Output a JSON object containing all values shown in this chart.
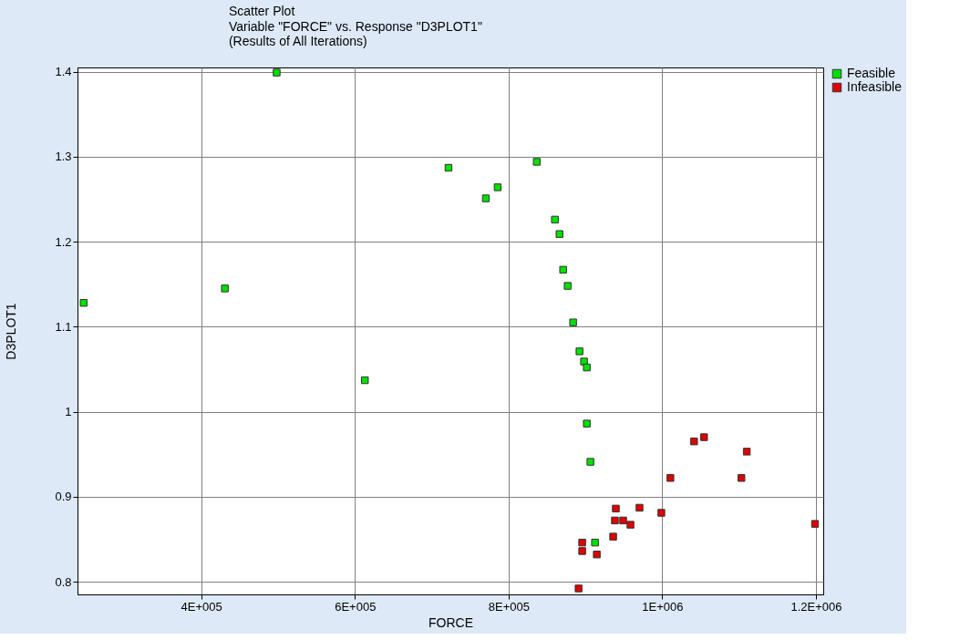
{
  "chart_data": {
    "type": "scatter",
    "title": "Scatter Plot",
    "subtitle": [
      "Variable \"FORCE\" vs. Response \"D3PLOT1\"",
      "(Results of All Iterations)"
    ],
    "xlabel": "FORCE",
    "ylabel": "D3PLOT1",
    "xlim": [
      239000,
      1209500
    ],
    "ylim": [
      0.785,
      1.405
    ],
    "xticks": [
      {
        "value": 400000,
        "label": "4E+005"
      },
      {
        "value": 600000,
        "label": "6E+005"
      },
      {
        "value": 800000,
        "label": "8E+005"
      },
      {
        "value": 1000000,
        "label": "1E+006"
      },
      {
        "value": 1200000,
        "label": "1.2E+006"
      }
    ],
    "yticks": [
      0.8,
      0.9,
      1,
      1.1,
      1.2,
      1.3,
      1.4
    ],
    "grid": true,
    "legend": "top right",
    "marker": "square",
    "series": [
      {
        "name": "Feasible",
        "color": "#00e000",
        "x": [
          247000,
          430800,
          498200,
          613000,
          721800,
          770400,
          785800,
          836700,
          860300,
          866300,
          871000,
          876900,
          884000,
          892300,
          898200,
          901800,
          901800,
          906500,
          912500
        ],
        "values": [
          1.128,
          1.145,
          1.399,
          1.037,
          1.287,
          1.251,
          1.264,
          1.294,
          1.226,
          1.209,
          1.167,
          1.148,
          1.105,
          1.071,
          1.059,
          1.052,
          0.986,
          0.941,
          0.846
        ]
      },
      {
        "name": "Infeasible",
        "color": "#e00000",
        "x": [
          895800,
          895800,
          891100,
          914800,
          936100,
          938400,
          939600,
          949100,
          958600,
          970400,
          998800,
          1010600,
          1041400,
          1054400,
          1103000,
          1110000,
          1198800
        ],
        "values": [
          0.846,
          0.836,
          0.792,
          0.832,
          0.853,
          0.872,
          0.886,
          0.872,
          0.867,
          0.887,
          0.881,
          0.922,
          0.965,
          0.97,
          0.922,
          0.953,
          0.868
        ]
      }
    ]
  }
}
